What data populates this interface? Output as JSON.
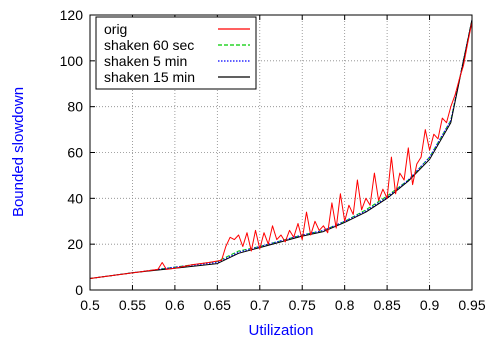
{
  "chart_data": {
    "type": "line",
    "xlabel": "Utilization",
    "ylabel": "Bounded slowdown",
    "xlim": [
      0.5,
      0.95
    ],
    "ylim": [
      0,
      120
    ],
    "x_ticks": [
      "0.5",
      "0.55",
      "0.6",
      "0.65",
      "0.7",
      "0.75",
      "0.8",
      "0.85",
      "0.9",
      "0.95"
    ],
    "y_ticks": [
      "0",
      "20",
      "40",
      "60",
      "80",
      "100",
      "120"
    ],
    "grid": true,
    "legend_position": "top-left",
    "axis_label_color": "#0000ff",
    "series": [
      {
        "name": "orig",
        "color": "#ff0000",
        "style": "solid",
        "x": [
          0.5,
          0.52,
          0.54,
          0.56,
          0.58,
          0.585,
          0.59,
          0.6,
          0.62,
          0.64,
          0.655,
          0.66,
          0.665,
          0.67,
          0.675,
          0.68,
          0.685,
          0.69,
          0.695,
          0.7,
          0.705,
          0.71,
          0.715,
          0.72,
          0.725,
          0.73,
          0.735,
          0.74,
          0.745,
          0.75,
          0.755,
          0.76,
          0.765,
          0.77,
          0.775,
          0.78,
          0.785,
          0.79,
          0.795,
          0.8,
          0.805,
          0.81,
          0.815,
          0.82,
          0.825,
          0.83,
          0.835,
          0.84,
          0.845,
          0.85,
          0.855,
          0.86,
          0.865,
          0.87,
          0.875,
          0.88,
          0.885,
          0.89,
          0.895,
          0.9,
          0.905,
          0.91,
          0.915,
          0.92,
          0.925,
          0.93,
          0.935,
          0.94,
          0.945,
          0.95
        ],
        "y": [
          5,
          6,
          7,
          8,
          9,
          12,
          9,
          9.5,
          11,
          12,
          13,
          19,
          23,
          22,
          24,
          19,
          25,
          17,
          26,
          18,
          25,
          20,
          28,
          22,
          24,
          21,
          26,
          23,
          29,
          22,
          34,
          24,
          30,
          26,
          28,
          25,
          38,
          27,
          42,
          30,
          37,
          33,
          48,
          35,
          40,
          37,
          51,
          39,
          44,
          40,
          58,
          42,
          51,
          48,
          62,
          46,
          55,
          58,
          70,
          61,
          68,
          66,
          75,
          73,
          80,
          85,
          92,
          98,
          108,
          117
        ]
      },
      {
        "name": "shaken 60 sec",
        "color": "#00cc00",
        "style": "dashed",
        "x": [
          0.5,
          0.55,
          0.6,
          0.65,
          0.675,
          0.7,
          0.725,
          0.75,
          0.775,
          0.8,
          0.825,
          0.85,
          0.875,
          0.9,
          0.925,
          0.95
        ],
        "y": [
          5,
          7.5,
          10,
          12.5,
          17,
          19,
          21.5,
          24,
          26,
          30,
          35,
          41,
          48,
          58,
          74,
          118
        ]
      },
      {
        "name": "shaken  5 min",
        "color": "#0000ff",
        "style": "dotted",
        "x": [
          0.5,
          0.55,
          0.6,
          0.65,
          0.675,
          0.7,
          0.725,
          0.75,
          0.775,
          0.8,
          0.825,
          0.85,
          0.875,
          0.9,
          0.925,
          0.95
        ],
        "y": [
          5,
          7.5,
          10,
          12,
          16.5,
          19,
          21.5,
          24,
          26,
          30,
          34.5,
          40.5,
          48,
          58,
          74,
          118
        ]
      },
      {
        "name": "shaken 15 min",
        "color": "#000000",
        "style": "solid",
        "x": [
          0.5,
          0.55,
          0.6,
          0.65,
          0.675,
          0.7,
          0.725,
          0.75,
          0.775,
          0.8,
          0.825,
          0.85,
          0.875,
          0.9,
          0.925,
          0.95
        ],
        "y": [
          5,
          7.5,
          9.5,
          11.5,
          16,
          18.5,
          21,
          23.5,
          25.5,
          29.5,
          34,
          40,
          47.5,
          57,
          73,
          118
        ]
      }
    ]
  }
}
